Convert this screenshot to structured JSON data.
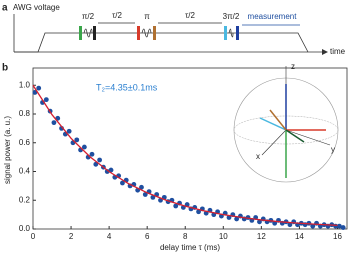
{
  "diagram": {
    "panel": "a",
    "ylabel": "AWG voltage",
    "xlabel": "time",
    "pulses": [
      "π/2",
      "π",
      "3π/2"
    ],
    "delays": [
      "τ/2",
      "τ/2"
    ],
    "measurement": "measurement"
  },
  "inset": {
    "z": "z",
    "y": "y",
    "x": "x"
  },
  "chart_data": {
    "type": "scatter",
    "panel": "b",
    "xlabel": "delay time τ (ms)",
    "ylabel": "signal power (a. u.)",
    "annotation": "T₂=4.35±0.1ms",
    "xlim": [
      0,
      16.5
    ],
    "ylim": [
      0,
      1.12
    ],
    "xticks": [
      0,
      2,
      4,
      6,
      8,
      10,
      12,
      14,
      16
    ],
    "yticks": [
      {
        "value": 0,
        "label": "0.0"
      },
      {
        "value": 0.2,
        "label": "0.2"
      },
      {
        "value": 0.4,
        "label": "0.4"
      },
      {
        "value": 0.6,
        "label": "0.6"
      },
      {
        "value": 0.8,
        "label": "0.8"
      },
      {
        "value": 1,
        "label": "1.0"
      }
    ],
    "series": [
      {
        "type": "scatter",
        "color": "#1f4fa0",
        "x": [
          0.1,
          0.3,
          0.5,
          0.7,
          0.9,
          1.1,
          1.3,
          1.5,
          1.7,
          1.9,
          2.1,
          2.3,
          2.5,
          2.7,
          2.9,
          3.1,
          3.3,
          3.5,
          3.7,
          3.9,
          4.1,
          4.3,
          4.5,
          4.7,
          4.9,
          5.1,
          5.3,
          5.5,
          5.7,
          5.9,
          6.1,
          6.3,
          6.5,
          6.7,
          6.9,
          7.1,
          7.3,
          7.5,
          7.7,
          7.9,
          8.1,
          8.3,
          8.5,
          8.7,
          8.9,
          9.1,
          9.3,
          9.5,
          9.7,
          9.9,
          10.1,
          10.3,
          10.5,
          10.7,
          10.9,
          11.1,
          11.3,
          11.5,
          11.7,
          11.9,
          12.1,
          12.3,
          12.5,
          12.7,
          12.9,
          13.1,
          13.3,
          13.5,
          13.7,
          13.9,
          14.1,
          14.3,
          14.5,
          14.7,
          14.9,
          15.1,
          15.3,
          15.5,
          15.7,
          15.9,
          16.1,
          16.3
        ],
        "values": [
          0.95,
          0.98,
          0.88,
          0.9,
          0.82,
          0.74,
          0.77,
          0.7,
          0.66,
          0.68,
          0.6,
          0.62,
          0.55,
          0.57,
          0.5,
          0.52,
          0.45,
          0.48,
          0.43,
          0.4,
          0.41,
          0.36,
          0.37,
          0.32,
          0.34,
          0.3,
          0.31,
          0.27,
          0.29,
          0.24,
          0.26,
          0.22,
          0.24,
          0.2,
          0.22,
          0.19,
          0.2,
          0.16,
          0.18,
          0.15,
          0.17,
          0.14,
          0.15,
          0.12,
          0.14,
          0.11,
          0.13,
          0.1,
          0.12,
          0.09,
          0.11,
          0.08,
          0.1,
          0.07,
          0.09,
          0.07,
          0.08,
          0.06,
          0.08,
          0.05,
          0.07,
          0.05,
          0.06,
          0.04,
          0.06,
          0.04,
          0.05,
          0.03,
          0.05,
          0.03,
          0.04,
          0.03,
          0.04,
          0.02,
          0.04,
          0.02,
          0.03,
          0.02,
          0.03,
          0.02,
          0.02,
          0.01
        ]
      },
      {
        "type": "line",
        "color": "#d62030",
        "x": [
          0,
          1,
          2,
          3,
          4,
          5,
          6,
          7,
          8,
          9,
          10,
          11,
          12,
          13,
          14,
          15,
          16
        ],
        "values": [
          1,
          0.795,
          0.631,
          0.502,
          0.399,
          0.317,
          0.252,
          0.2,
          0.159,
          0.126,
          0.1,
          0.08,
          0.063,
          0.05,
          0.04,
          0.032,
          0.025
        ]
      }
    ]
  }
}
